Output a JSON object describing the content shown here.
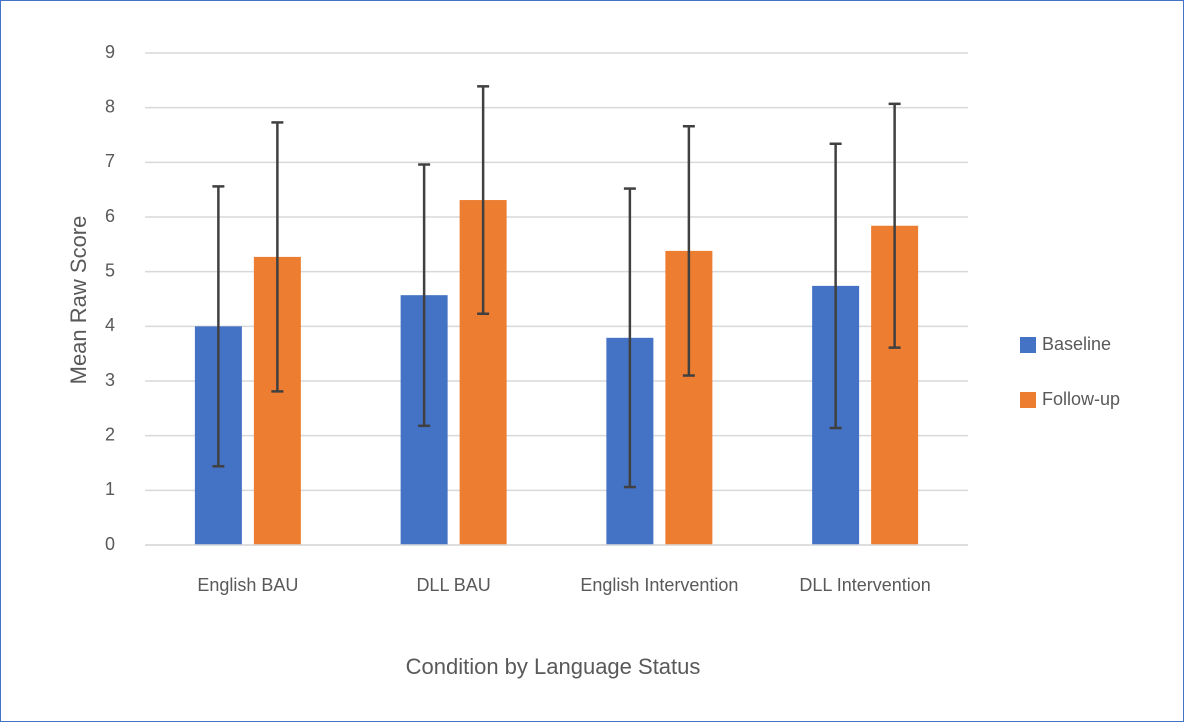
{
  "chart_data": {
    "type": "bar",
    "xlabel": "Condition by Language Status",
    "ylabel": "Mean Raw Score",
    "categories": [
      "English BAU",
      "DLL BAU",
      "English Intervention",
      "DLL Intervention"
    ],
    "series": [
      {
        "name": "Baseline",
        "color": "#4472c4",
        "values": [
          4.0,
          4.57,
          3.79,
          4.74
        ],
        "errors": [
          2.56,
          2.39,
          2.73,
          2.6
        ]
      },
      {
        "name": "Follow-up",
        "color": "#ed7d31",
        "values": [
          5.27,
          6.31,
          5.38,
          5.84
        ],
        "errors": [
          2.46,
          2.08,
          2.28,
          2.23
        ]
      }
    ],
    "ylim": [
      0,
      9
    ],
    "yticks": [
      0,
      1,
      2,
      3,
      4,
      5,
      6,
      7,
      8,
      9
    ],
    "grid": true,
    "legend": "right"
  }
}
